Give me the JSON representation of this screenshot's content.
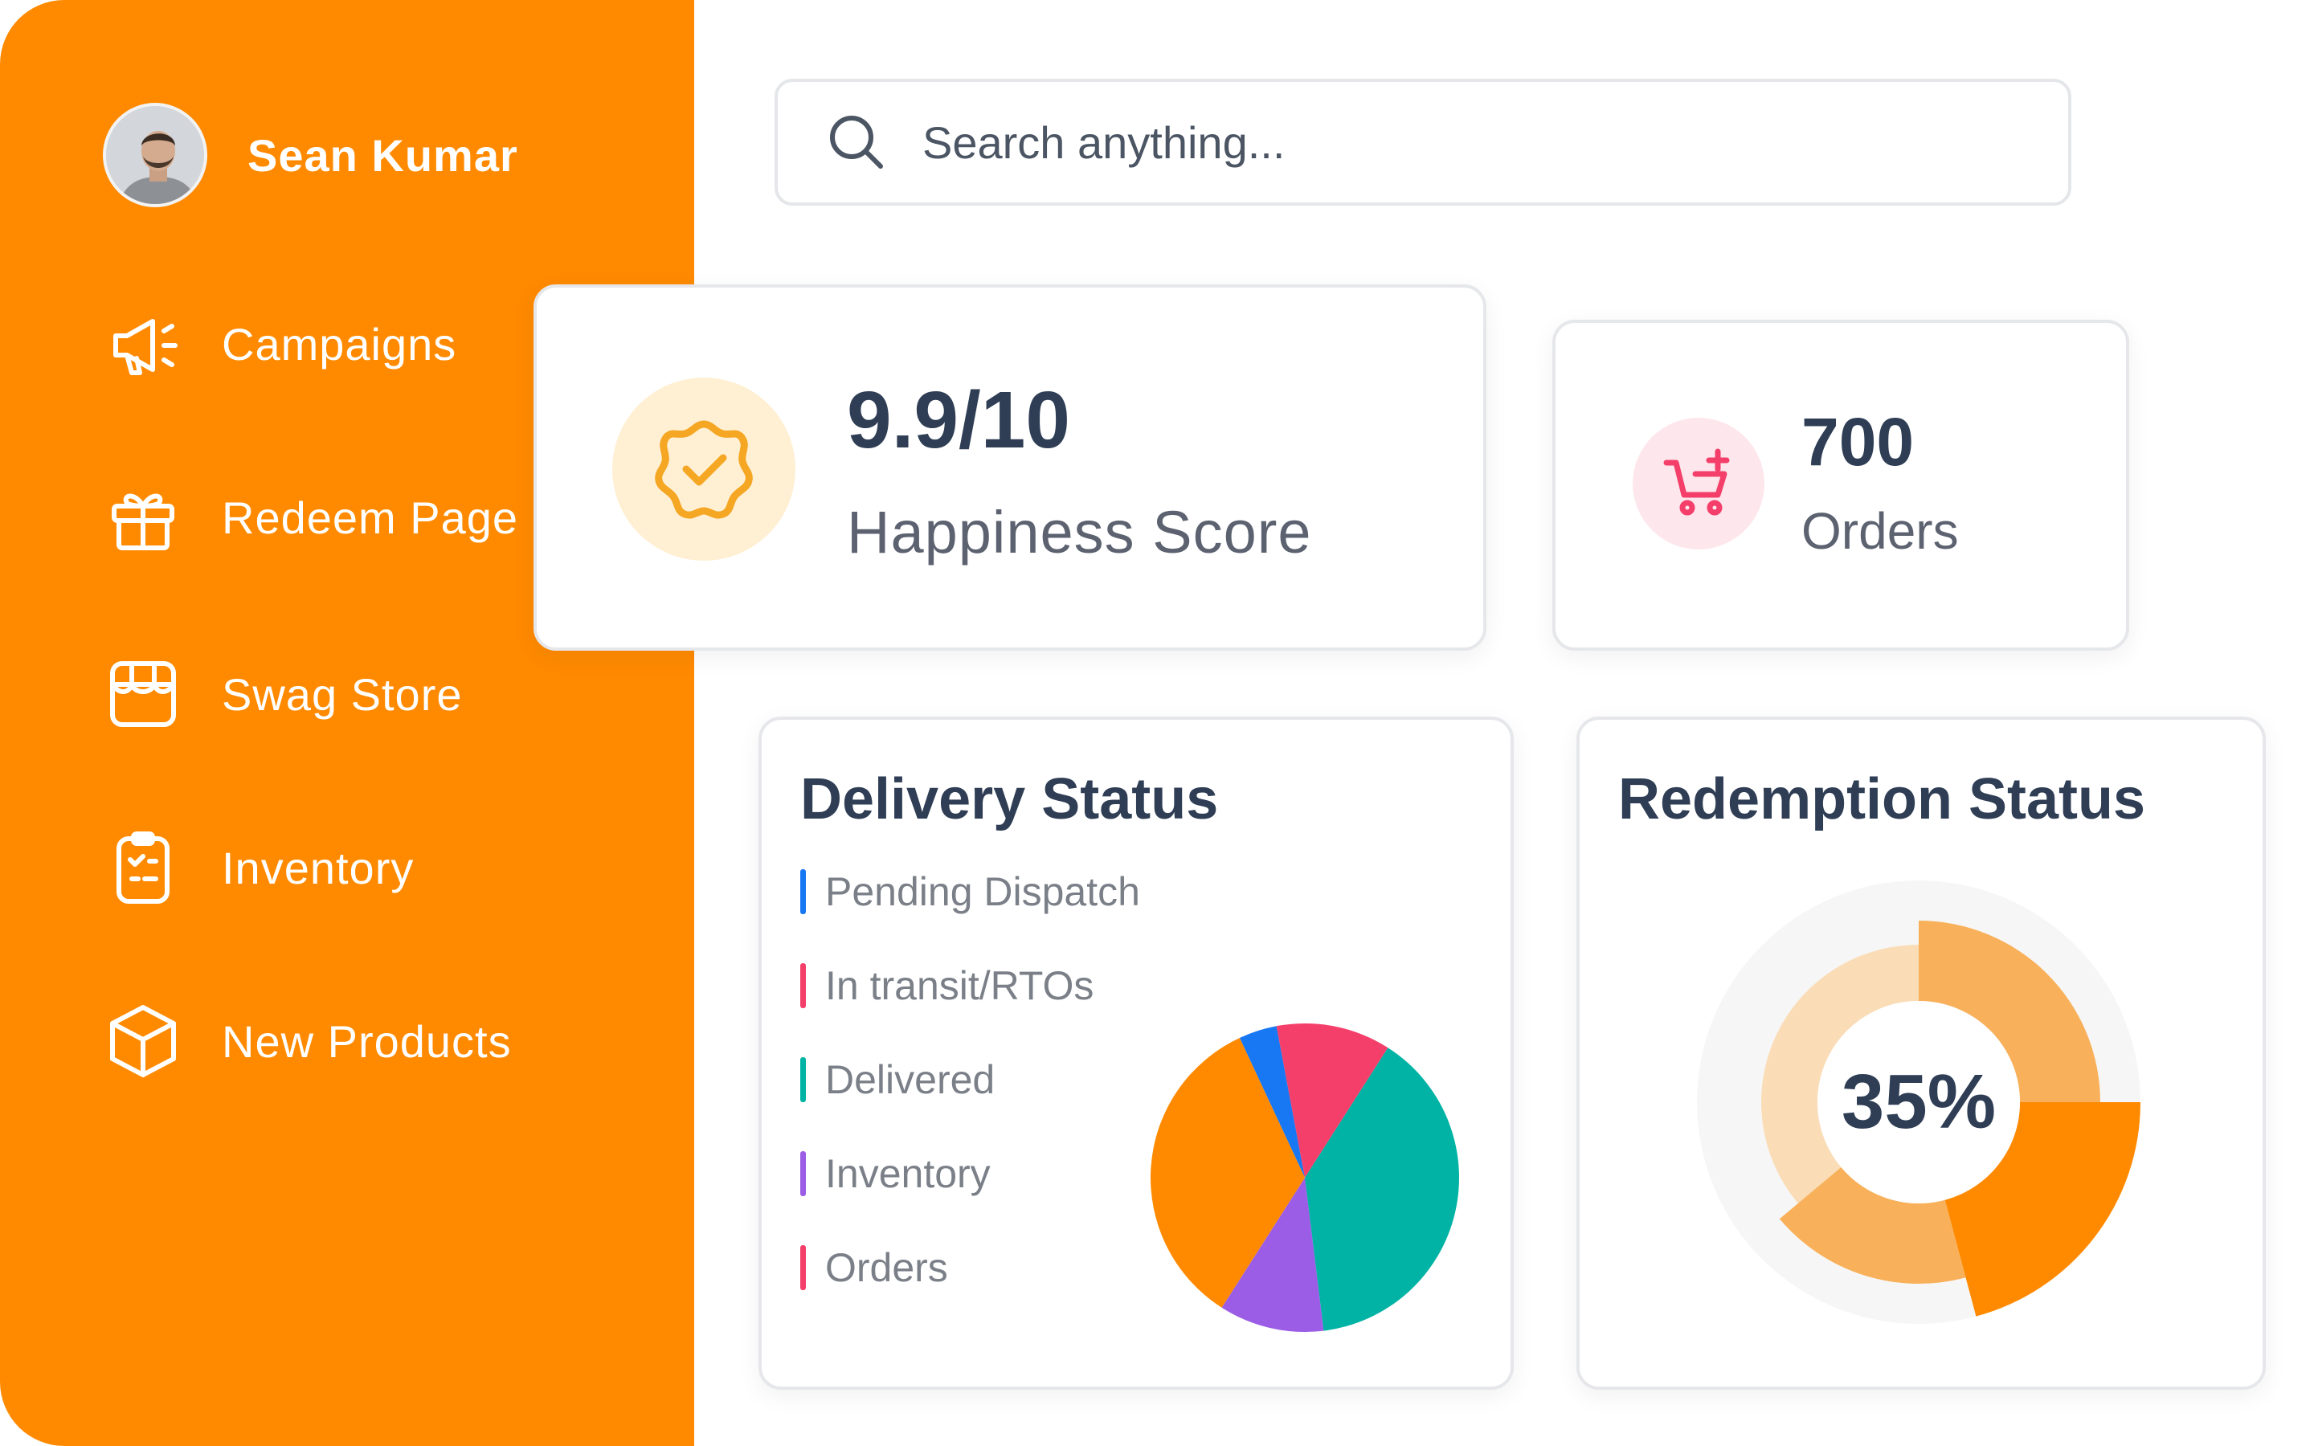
{
  "sidebar": {
    "user": {
      "name": "Sean Kumar"
    },
    "items": [
      {
        "label": "Campaigns",
        "icon": "megaphone-icon"
      },
      {
        "label": "Redeem Page",
        "icon": "gift-icon"
      },
      {
        "label": "Swag Store",
        "icon": "store-icon"
      },
      {
        "label": "Inventory",
        "icon": "clipboard-icon"
      },
      {
        "label": "New Products",
        "icon": "box-icon"
      }
    ]
  },
  "search": {
    "placeholder": "Search anything..."
  },
  "stats": {
    "happiness": {
      "value": "9.9/10",
      "label": "Happiness Score",
      "icon": "check-badge-icon"
    },
    "orders": {
      "value": "700",
      "label": "Orders",
      "icon": "cart-plus-icon"
    }
  },
  "delivery": {
    "title": "Delivery Status",
    "legend": [
      {
        "label": "Pending Dispatch",
        "color": "#1877F2"
      },
      {
        "label": "In transit/RTOs",
        "color": "#F43F6B"
      },
      {
        "label": "Delivered",
        "color": "#00B3A4"
      },
      {
        "label": "Inventory",
        "color": "#9B5DE5"
      },
      {
        "label": "Orders",
        "color": "#F43F6B"
      }
    ]
  },
  "redemption": {
    "title": "Redemption Status",
    "percent": "35%"
  },
  "colors": {
    "sidebar": "#FF8A00",
    "heading": "#2F3E55",
    "orange": "#FF8A00",
    "orange_light": "#F8B15A",
    "orange_pale": "#FADDB7"
  },
  "chart_data": [
    {
      "type": "pie",
      "categories": [
        "Pending Dispatch",
        "In transit/RTOs",
        "Delivered",
        "Inventory",
        "Orders"
      ],
      "values": [
        4,
        12,
        39,
        11,
        34
      ],
      "colors": [
        "#1877F2",
        "#F43F6B",
        "#00B3A4",
        "#9B5DE5",
        "#FF8A00"
      ],
      "legend": "left"
    },
    {
      "type": "pie",
      "subtype": "donut",
      "values": [
        35,
        65
      ],
      "center_label": "35%"
    }
  ]
}
